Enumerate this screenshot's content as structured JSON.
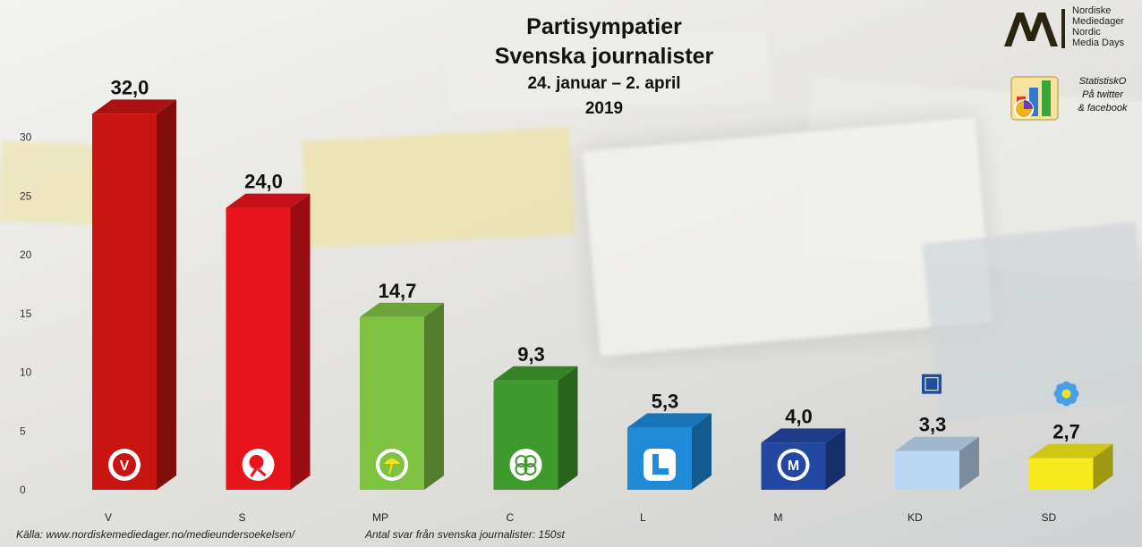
{
  "title": {
    "line1": "Partisympatier",
    "line2": "Svenska journalister",
    "line3": "24. januar – 2. april",
    "line4": "2019"
  },
  "logo": {
    "line1": "Nordiske",
    "line2": "Mediedager",
    "line3": "Nordic",
    "line4": "Media Days"
  },
  "statistisko": {
    "line1": "StatistiskO",
    "line2": "På twitter",
    "line3": "& facebook"
  },
  "footer": {
    "source": "Källa: www.nordiskemediedager.no/medieundersoekelsen/",
    "respondents": "Antal svar från svenska journalister: 150st"
  },
  "chart_data": {
    "type": "bar",
    "categories": [
      "V",
      "S",
      "MP",
      "C",
      "L",
      "M",
      "KD",
      "SD"
    ],
    "values": [
      32.0,
      24.0,
      14.7,
      9.3,
      5.3,
      4.0,
      3.3,
      2.7
    ],
    "value_labels": [
      "32,0",
      "24,0",
      "14,7",
      "9,3",
      "5,3",
      "4,0",
      "3,3",
      "2,7"
    ],
    "ylim": [
      0,
      35
    ],
    "yticks": [
      0,
      5,
      10,
      15,
      20,
      25,
      30
    ],
    "grid": false,
    "colors": [
      "#c81512",
      "#e8141b",
      "#7ec242",
      "#3f9a2d",
      "#1f8ad8",
      "#2248a4",
      "#bcd7f2",
      "#f4ea1c"
    ],
    "party_icons": [
      "v-logo-icon",
      "s-rose-icon",
      "mp-dandelion-icon",
      "c-clover-icon",
      "l-logo-icon",
      "m-logo-icon",
      "kd-logo-icon",
      "sd-flower-icon"
    ]
  }
}
